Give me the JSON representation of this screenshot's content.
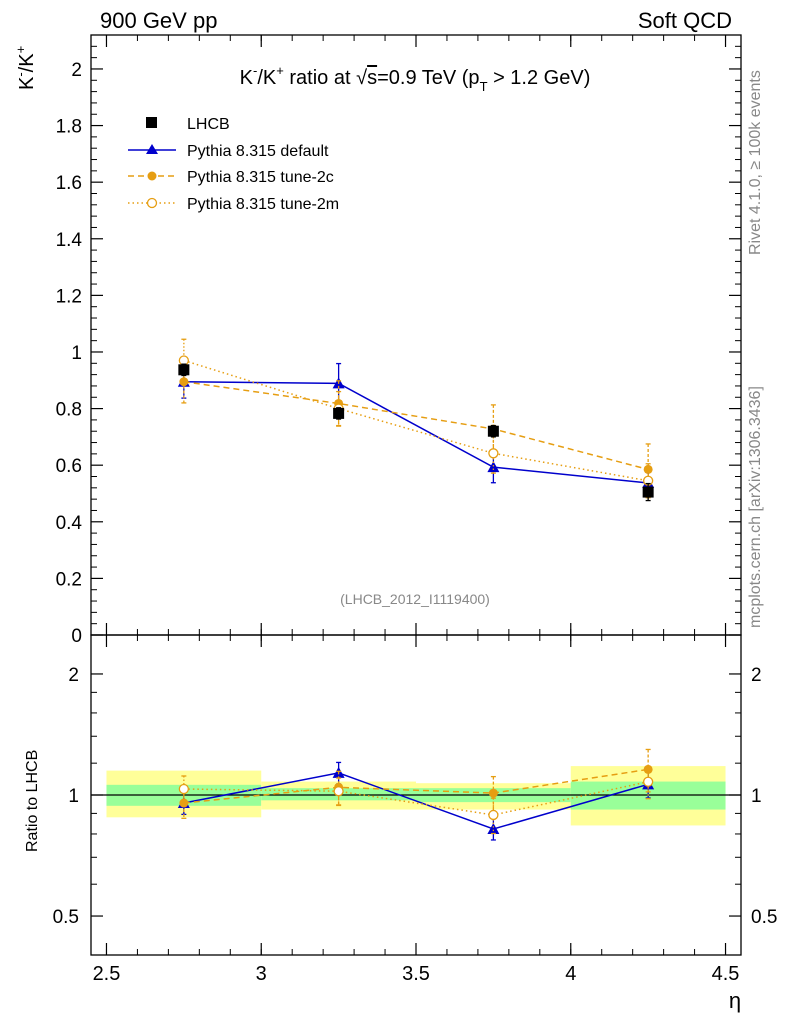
{
  "header": {
    "left": "900 GeV pp",
    "right": "Soft QCD"
  },
  "side_labels": {
    "rivet": "Rivet 4.1.0, ≥ 100k events",
    "mcplots": "mcplots.cern.ch [arXiv:1306.3436]"
  },
  "watermark": "(LHCB_2012_I1119400)",
  "colors": {
    "lhcb": "#000000",
    "default": "#0000cc",
    "tune2c": "#e69e12",
    "tune2m": "#e69e12",
    "band_inner": "#99ff99",
    "band_outer": "#ffff99"
  },
  "chart_data": [
    {
      "type": "scatter",
      "title_parts": {
        "a": "K",
        "a_sup": "-",
        "b": "/K",
        "b_sup": "+",
        "c": " ratio at ",
        "sqrt": "√",
        "s": "s",
        "d": "=0.9 TeV (p",
        "sub": "T",
        "e": " > 1.2 GeV)"
      },
      "ylabel_parts": {
        "a": "K",
        "a_sup": "-",
        "b": "/K",
        "b_sup": "+"
      },
      "ylim": [
        0,
        2.12
      ],
      "xlim": [
        2.45,
        4.55
      ],
      "y_ticks": [
        "0",
        "0.2",
        "0.4",
        "0.6",
        "0.8",
        "1",
        "1.2",
        "1.4",
        "1.6",
        "1.8",
        "2"
      ],
      "legend": [
        "LHCB",
        "Pythia 8.315 default",
        "Pythia 8.315 tune-2c",
        "Pythia 8.315 tune-2m"
      ],
      "legend_position": "top-left",
      "series": [
        {
          "name": "LHCB",
          "x": [
            2.75,
            3.25,
            3.75,
            4.25
          ],
          "y": [
            0.937,
            0.783,
            0.72,
            0.505
          ],
          "yerr": [
            0.02,
            0.02,
            0.02,
            0.03
          ]
        },
        {
          "name": "Pythia 8.315 default",
          "x": [
            2.75,
            3.25,
            3.75,
            4.25
          ],
          "y": [
            0.895,
            0.889,
            0.593,
            0.537
          ],
          "yerr": [
            0.058,
            0.07,
            0.055,
            0.05
          ]
        },
        {
          "name": "Pythia 8.315 tune-2c",
          "x": [
            2.75,
            3.25,
            3.75,
            4.25
          ],
          "y": [
            0.895,
            0.818,
            0.728,
            0.585
          ],
          "yerr": [
            0.075,
            0.08,
            0.085,
            0.09
          ]
        },
        {
          "name": "Pythia 8.315 tune-2m",
          "x": [
            2.75,
            3.25,
            3.75,
            4.25
          ],
          "y": [
            0.97,
            0.8,
            0.642,
            0.545
          ],
          "yerr": [
            0.075,
            0.06,
            0.07,
            0.06
          ]
        }
      ]
    },
    {
      "type": "scatter",
      "ylabel": "Ratio to LHCB",
      "xlabel": "η",
      "y_scale": "log",
      "ylim": [
        0.4,
        2.5
      ],
      "xlim": [
        2.45,
        4.55
      ],
      "y_ticks": [
        "0.5",
        "1",
        "2"
      ],
      "x_ticks": [
        "2.5",
        "3",
        "3.5",
        "4",
        "4.5"
      ],
      "reference_line": 1,
      "bands": [
        {
          "x": [
            2.5,
            3.0
          ],
          "inner": [
            0.94,
            1.06
          ],
          "outer": [
            0.88,
            1.15
          ]
        },
        {
          "x": [
            3.0,
            3.5
          ],
          "inner": [
            0.97,
            1.04
          ],
          "outer": [
            0.92,
            1.08
          ]
        },
        {
          "x": [
            3.5,
            4.0
          ],
          "inner": [
            0.96,
            1.04
          ],
          "outer": [
            0.92,
            1.07
          ]
        },
        {
          "x": [
            4.0,
            4.5
          ],
          "inner": [
            0.92,
            1.08
          ],
          "outer": [
            0.84,
            1.18
          ]
        }
      ],
      "series": [
        {
          "name": "Pythia 8.315 default",
          "x": [
            2.75,
            3.25,
            3.75,
            4.25
          ],
          "y": [
            0.955,
            1.135,
            0.823,
            1.063
          ],
          "yerr": [
            0.06,
            0.07,
            0.05,
            0.08
          ]
        },
        {
          "name": "Pythia 8.315 tune-2c",
          "x": [
            2.75,
            3.25,
            3.75,
            4.25
          ],
          "y": [
            0.955,
            1.045,
            1.011,
            1.158
          ],
          "yerr": [
            0.08,
            0.1,
            0.1,
            0.14
          ]
        },
        {
          "name": "Pythia 8.315 tune-2m",
          "x": [
            2.75,
            3.25,
            3.75,
            4.25
          ],
          "y": [
            1.035,
            1.022,
            0.892,
            1.079
          ],
          "yerr": [
            0.08,
            0.08,
            0.09,
            0.1
          ]
        }
      ]
    }
  ]
}
